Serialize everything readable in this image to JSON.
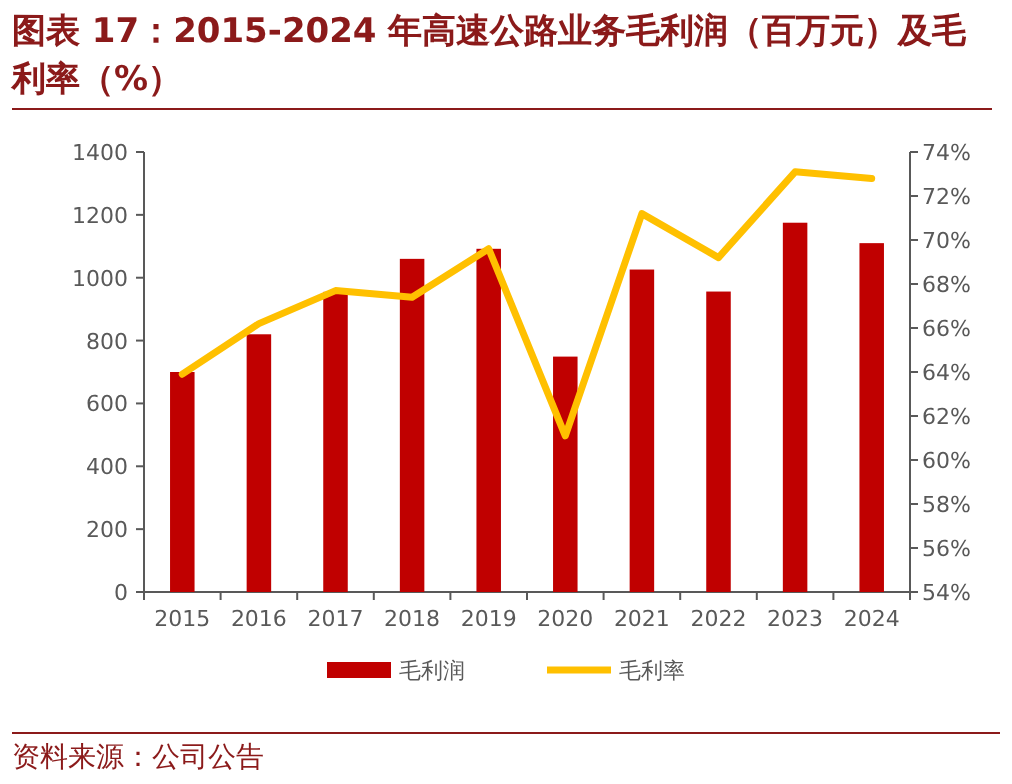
{
  "chart_data": {
    "type": "bar",
    "title": "图表 17：2015-2024 年高速公路业务毛利润（百万元）及毛利率（%）",
    "categories": [
      "2015",
      "2016",
      "2017",
      "2018",
      "2019",
      "2020",
      "2021",
      "2022",
      "2023",
      "2024"
    ],
    "series": [
      {
        "name": "毛利润",
        "color": "#c00000",
        "values": [
          700,
          820,
          955,
          1060,
          1092,
          749,
          1026,
          956,
          1175,
          1110
        ]
      },
      {
        "name": "毛利率",
        "type": "line",
        "axis": "y2",
        "color": "#ffc000",
        "marker": "none",
        "values": [
          63.9,
          66.2,
          67.7,
          67.4,
          69.6,
          61.1,
          71.2,
          69.2,
          73.1,
          72.8
        ]
      }
    ],
    "ylim": [
      0,
      1400
    ],
    "yticks": [
      0,
      200,
      400,
      600,
      800,
      1000,
      1200,
      1400
    ],
    "y2lim": [
      54,
      74
    ],
    "y2ticks": [
      {
        "value": 54,
        "label": "54%"
      },
      {
        "value": 56,
        "label": "56%"
      },
      {
        "value": 58,
        "label": "58%"
      },
      {
        "value": 60,
        "label": "60%"
      },
      {
        "value": 62,
        "label": "62%"
      },
      {
        "value": 64,
        "label": "64%"
      },
      {
        "value": 66,
        "label": "66%"
      },
      {
        "value": 68,
        "label": "68%"
      },
      {
        "value": 70,
        "label": "70%"
      },
      {
        "value": 72,
        "label": "72%"
      },
      {
        "value": 74,
        "label": "74%"
      }
    ],
    "grid": false,
    "legend": "bottom",
    "annotations": [
      "资料来源：公司公告"
    ]
  }
}
